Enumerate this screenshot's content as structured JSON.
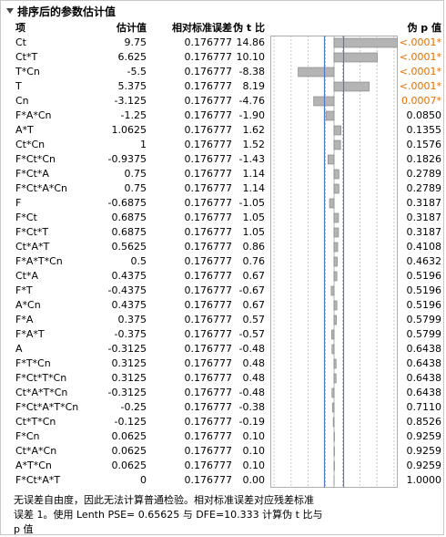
{
  "title": "排序后的参数估计值",
  "headers": {
    "term": "项",
    "estimate": "估计值",
    "se": "相对标准误差",
    "t": "伪 t 比",
    "p": "伪 p 值"
  },
  "rows": [
    {
      "term": "Ct",
      "estimate": "9.75",
      "se": "0.176777",
      "t": "14.86",
      "p": "<.0001*",
      "t_val": 14.86,
      "sig": true
    },
    {
      "term": "Ct*T",
      "estimate": "6.625",
      "se": "0.176777",
      "t": "10.10",
      "p": "<.0001*",
      "t_val": 10.1,
      "sig": true
    },
    {
      "term": "T*Cn",
      "estimate": "-5.5",
      "se": "0.176777",
      "t": "-8.38",
      "p": "<.0001*",
      "t_val": -8.38,
      "sig": true
    },
    {
      "term": "T",
      "estimate": "5.375",
      "se": "0.176777",
      "t": "8.19",
      "p": "<.0001*",
      "t_val": 8.19,
      "sig": true
    },
    {
      "term": "Cn",
      "estimate": "-3.125",
      "se": "0.176777",
      "t": "-4.76",
      "p": "0.0007*",
      "t_val": -4.76,
      "sig": true
    },
    {
      "term": "F*A*Cn",
      "estimate": "-1.25",
      "se": "0.176777",
      "t": "-1.90",
      "p": "0.0850",
      "t_val": -1.9,
      "sig": false
    },
    {
      "term": "A*T",
      "estimate": "1.0625",
      "se": "0.176777",
      "t": "1.62",
      "p": "0.1355",
      "t_val": 1.62,
      "sig": false
    },
    {
      "term": "Ct*Cn",
      "estimate": "1",
      "se": "0.176777",
      "t": "1.52",
      "p": "0.1576",
      "t_val": 1.52,
      "sig": false
    },
    {
      "term": "F*Ct*Cn",
      "estimate": "-0.9375",
      "se": "0.176777",
      "t": "-1.43",
      "p": "0.1826",
      "t_val": -1.43,
      "sig": false
    },
    {
      "term": "F*Ct*A",
      "estimate": "0.75",
      "se": "0.176777",
      "t": "1.14",
      "p": "0.2789",
      "t_val": 1.14,
      "sig": false
    },
    {
      "term": "F*Ct*A*Cn",
      "estimate": "0.75",
      "se": "0.176777",
      "t": "1.14",
      "p": "0.2789",
      "t_val": 1.14,
      "sig": false
    },
    {
      "term": "F",
      "estimate": "-0.6875",
      "se": "0.176777",
      "t": "-1.05",
      "p": "0.3187",
      "t_val": -1.05,
      "sig": false
    },
    {
      "term": "F*Ct",
      "estimate": "0.6875",
      "se": "0.176777",
      "t": "1.05",
      "p": "0.3187",
      "t_val": 1.05,
      "sig": false
    },
    {
      "term": "F*Ct*T",
      "estimate": "0.6875",
      "se": "0.176777",
      "t": "1.05",
      "p": "0.3187",
      "t_val": 1.05,
      "sig": false
    },
    {
      "term": "Ct*A*T",
      "estimate": "0.5625",
      "se": "0.176777",
      "t": "0.86",
      "p": "0.4108",
      "t_val": 0.86,
      "sig": false
    },
    {
      "term": "F*A*T*Cn",
      "estimate": "0.5",
      "se": "0.176777",
      "t": "0.76",
      "p": "0.4632",
      "t_val": 0.76,
      "sig": false
    },
    {
      "term": "Ct*A",
      "estimate": "0.4375",
      "se": "0.176777",
      "t": "0.67",
      "p": "0.5196",
      "t_val": 0.67,
      "sig": false
    },
    {
      "term": "F*T",
      "estimate": "-0.4375",
      "se": "0.176777",
      "t": "-0.67",
      "p": "0.5196",
      "t_val": -0.67,
      "sig": false
    },
    {
      "term": "A*Cn",
      "estimate": "0.4375",
      "se": "0.176777",
      "t": "0.67",
      "p": "0.5196",
      "t_val": 0.67,
      "sig": false
    },
    {
      "term": "F*A",
      "estimate": "0.375",
      "se": "0.176777",
      "t": "0.57",
      "p": "0.5799",
      "t_val": 0.57,
      "sig": false
    },
    {
      "term": "F*A*T",
      "estimate": "-0.375",
      "se": "0.176777",
      "t": "-0.57",
      "p": "0.5799",
      "t_val": -0.57,
      "sig": false
    },
    {
      "term": "A",
      "estimate": "-0.3125",
      "se": "0.176777",
      "t": "-0.48",
      "p": "0.6438",
      "t_val": -0.48,
      "sig": false
    },
    {
      "term": "F*T*Cn",
      "estimate": "0.3125",
      "se": "0.176777",
      "t": "0.48",
      "p": "0.6438",
      "t_val": 0.48,
      "sig": false
    },
    {
      "term": "F*Ct*T*Cn",
      "estimate": "0.3125",
      "se": "0.176777",
      "t": "0.48",
      "p": "0.6438",
      "t_val": 0.48,
      "sig": false
    },
    {
      "term": "Ct*A*T*Cn",
      "estimate": "-0.3125",
      "se": "0.176777",
      "t": "-0.48",
      "p": "0.6438",
      "t_val": -0.48,
      "sig": false
    },
    {
      "term": "F*Ct*A*T*Cn",
      "estimate": "-0.25",
      "se": "0.176777",
      "t": "-0.38",
      "p": "0.7110",
      "t_val": -0.38,
      "sig": false
    },
    {
      "term": "Ct*T*Cn",
      "estimate": "-0.125",
      "se": "0.176777",
      "t": "-0.19",
      "p": "0.8526",
      "t_val": -0.19,
      "sig": false
    },
    {
      "term": "F*Cn",
      "estimate": "0.0625",
      "se": "0.176777",
      "t": "0.10",
      "p": "0.9259",
      "t_val": 0.1,
      "sig": false
    },
    {
      "term": "Ct*A*Cn",
      "estimate": "0.0625",
      "se": "0.176777",
      "t": "0.10",
      "p": "0.9259",
      "t_val": 0.1,
      "sig": false
    },
    {
      "term": "A*T*Cn",
      "estimate": "0.0625",
      "se": "0.176777",
      "t": "0.10",
      "p": "0.9259",
      "t_val": 0.1,
      "sig": false
    },
    {
      "term": "F*Ct*A*T",
      "estimate": "0",
      "se": "0.176777",
      "t": "0.00",
      "p": "1.0000",
      "t_val": 0.0,
      "sig": false
    }
  ],
  "chart": {
    "t_critical": 2.23,
    "colors": {
      "bar": "#b4b4b4",
      "bar_border": "#808080",
      "ref_line": "#5078c8",
      "grid": "#a0a0a0",
      "sig_p": "#e07000"
    }
  },
  "note": {
    "line1": "无误差自由度，因此无法计算普通检验。相对标准误差对应残差标准",
    "line2": "误差 1。使用 Lenth PSE= 0.65625 与 DFE=10.333 计算伪 t 比与",
    "line3": "p 值"
  }
}
